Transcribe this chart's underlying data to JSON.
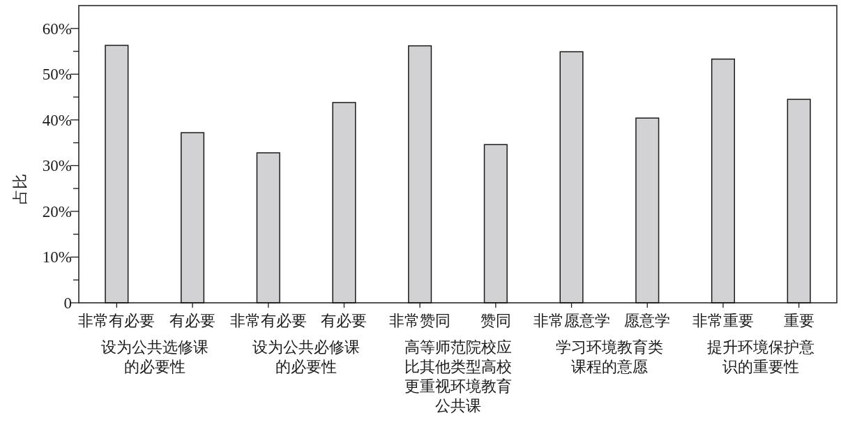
{
  "chart_data": {
    "type": "bar",
    "ylabel": "占比",
    "categories": [
      "非常有必要",
      "有必要",
      "非常有必要",
      "有必要",
      "非常赞同",
      "赞同",
      "非常愿意学",
      "愿意学",
      "非常重要",
      "重要"
    ],
    "values": [
      56.3,
      37.2,
      32.8,
      43.8,
      56.2,
      34.6,
      54.9,
      40.4,
      53.3,
      44.5
    ],
    "color": "#d2d2d4",
    "ylim": [
      0,
      65
    ],
    "yticks": [
      {
        "value": 0,
        "label": "0"
      },
      {
        "value": 5,
        "label": null
      },
      {
        "value": 10,
        "label": "10%"
      },
      {
        "value": 15,
        "label": null
      },
      {
        "value": 20,
        "label": "20%"
      },
      {
        "value": 25,
        "label": null
      },
      {
        "value": 30,
        "label": "30%"
      },
      {
        "value": 35,
        "label": null
      },
      {
        "value": 40,
        "label": "40%"
      },
      {
        "value": 45,
        "label": null
      },
      {
        "value": 50,
        "label": "50%"
      },
      {
        "value": 55,
        "label": null
      },
      {
        "value": 60,
        "label": "60%"
      }
    ],
    "annotations": [
      "设为公共选修课的必要性",
      "设为公共必修课的必要性",
      "高等师范院校应比其他类型高校更重视环境教育公共课",
      "学习环境教育类课程的意愿",
      "提升环境保护意识的重要性"
    ]
  }
}
